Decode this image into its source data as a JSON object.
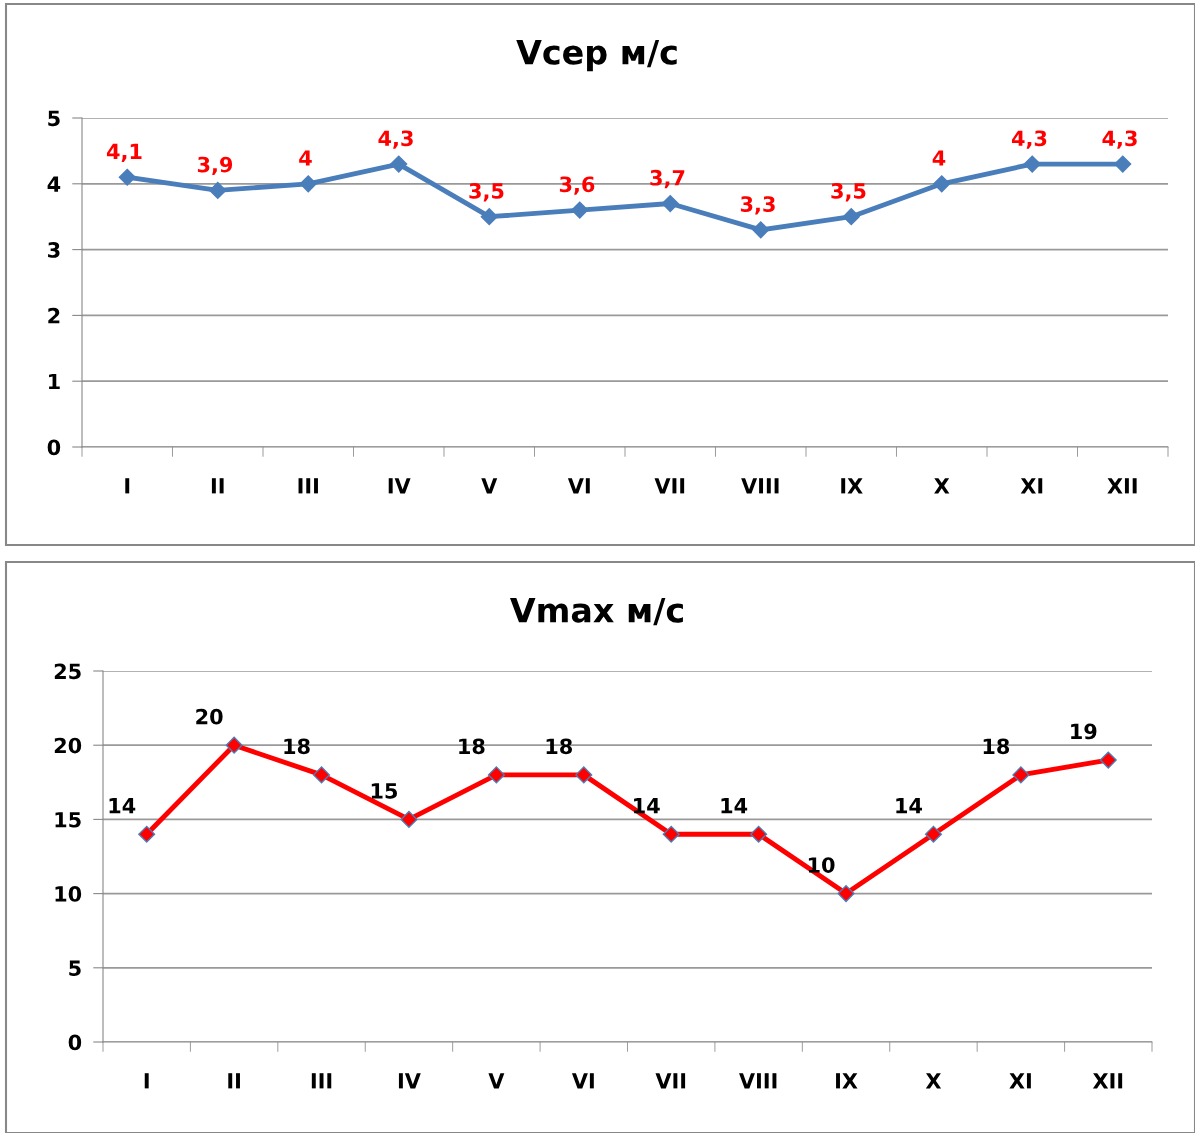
{
  "chart_data": [
    {
      "type": "line",
      "title": "Vсер м/с",
      "categories": [
        "I",
        "II",
        "III",
        "IV",
        "V",
        "VI",
        "VII",
        "VIII",
        "IX",
        "X",
        "XI",
        "XII"
      ],
      "series": [
        {
          "color": "#4a7ebb",
          "values": [
            4.1,
            3.9,
            4.0,
            4.3,
            3.5,
            3.6,
            3.7,
            3.3,
            3.5,
            4.0,
            4.3,
            4.3
          ],
          "value_labels": [
            "4,1",
            "3,9",
            "4",
            "4,3",
            "3,5",
            "3,6",
            "3,7",
            "3,3",
            "3,5",
            "4",
            "4,3",
            "4,3"
          ]
        }
      ],
      "ylim": [
        0,
        5
      ],
      "yticks": [
        0,
        1,
        2,
        3,
        4,
        5
      ],
      "grid": "y",
      "legend": false,
      "marker": "diamond",
      "line_style": "solid"
    },
    {
      "type": "line",
      "title": "Vmax м/с",
      "categories": [
        "I",
        "II",
        "III",
        "IV",
        "V",
        "VI",
        "VII",
        "VIII",
        "IX",
        "X",
        "XI",
        "XII"
      ],
      "series": [
        {
          "color": "#ff0000",
          "values": [
            14,
            20,
            18,
            15,
            18,
            18,
            14,
            14,
            10,
            14,
            18,
            19
          ]
        }
      ],
      "ylim": [
        0,
        25
      ],
      "yticks": [
        0,
        5,
        10,
        15,
        20,
        25
      ],
      "grid": "y",
      "legend": false,
      "marker": "diamond",
      "line_style": "solid",
      "data_labels": true
    }
  ]
}
